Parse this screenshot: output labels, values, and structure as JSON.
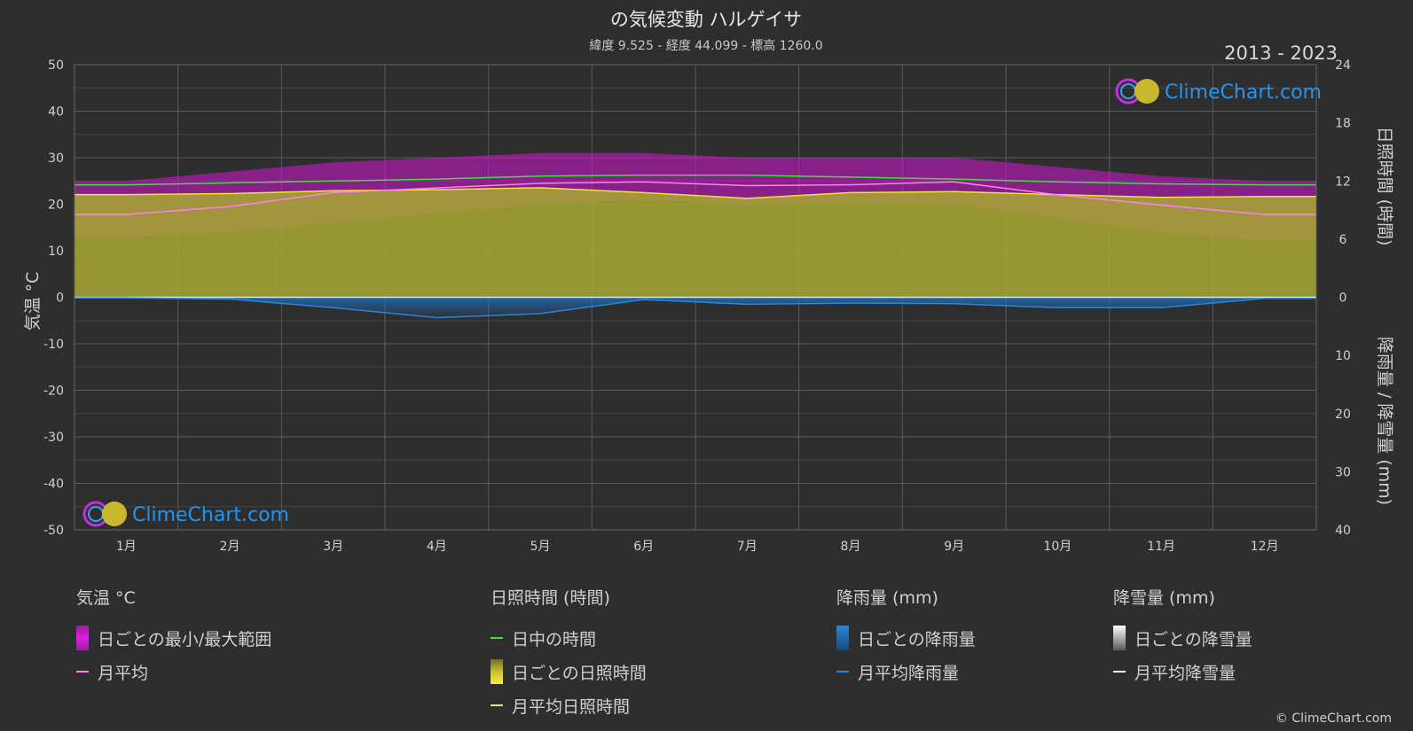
{
  "title": "の気候変動 ハルゲイサ",
  "subtitle": "緯度 9.525 - 経度 44.099 - 標高 1260.0",
  "period": "2013 - 2023",
  "brand": "ClimeChart.com",
  "copyright": "© ClimeChart.com",
  "colors": {
    "background": "#2e2e2e",
    "temp_range": "#d218d2",
    "temp_mean": "#ff7ff0",
    "daylight": "#44dd44",
    "sunshine_fill": "#a8a832",
    "sunshine_mean": "#f0e040",
    "rain": "#2a86d8",
    "snow": "#ffffff",
    "brand_text": "#2196f3"
  },
  "legend": {
    "temp": {
      "header": "気温 °C",
      "range": "日ごとの最小/最大範囲",
      "mean": "月平均"
    },
    "sun": {
      "header": "日照時間 (時間)",
      "daylight": "日中の時間",
      "daily": "日ごとの日照時間",
      "mean": "月平均日照時間"
    },
    "rain": {
      "header": "降雨量 (mm)",
      "daily": "日ごとの降雨量",
      "mean": "月平均降雨量"
    },
    "snow": {
      "header": "降雪量 (mm)",
      "daily": "日ごとの降雪量",
      "mean": "月平均降雪量"
    }
  },
  "chart_data": {
    "type": "area",
    "months": [
      "1月",
      "2月",
      "3月",
      "4月",
      "5月",
      "6月",
      "7月",
      "8月",
      "9月",
      "10月",
      "11月",
      "12月"
    ],
    "left_axis": {
      "label": "気温 °C",
      "min": -50,
      "max": 50,
      "ticks": [
        50,
        40,
        30,
        20,
        10,
        0,
        -10,
        -20,
        -30,
        -40,
        -50
      ]
    },
    "right_axis_sun": {
      "label": "日照時間 (時間)",
      "min": 0,
      "max": 24,
      "ticks": [
        24,
        18,
        12,
        6,
        0
      ]
    },
    "right_axis_rain": {
      "label": "降雨量 / 降雪量 (mm)",
      "min": 0,
      "max": 40,
      "ticks": [
        0,
        10,
        20,
        30,
        40
      ]
    },
    "series": [
      {
        "name": "日ごとの最小/最大範囲",
        "kind": "temp_range",
        "min": [
          13,
          14,
          16,
          18,
          20,
          21,
          20,
          20,
          20,
          17,
          14,
          12
        ],
        "max": [
          25,
          27,
          29,
          30,
          31,
          31,
          30,
          30,
          30,
          28,
          26,
          25
        ]
      },
      {
        "name": "月平均",
        "kind": "temp_mean",
        "values": [
          17.8,
          19.5,
          22.5,
          23.5,
          24.5,
          24.8,
          24.0,
          24.2,
          24.8,
          22.0,
          19.8,
          17.8
        ]
      },
      {
        "name": "日中の時間",
        "kind": "daylight",
        "values": [
          11.6,
          11.8,
          12.0,
          12.2,
          12.5,
          12.6,
          12.6,
          12.4,
          12.2,
          11.9,
          11.7,
          11.6
        ]
      },
      {
        "name": "日ごとの日照時間",
        "kind": "sunshine_daily",
        "values": [
          10.6,
          10.7,
          11.0,
          11.1,
          11.3,
          10.8,
          10.2,
          10.8,
          10.9,
          10.6,
          10.3,
          10.4
        ]
      },
      {
        "name": "月平均日照時間",
        "kind": "sunshine_mean",
        "values": [
          10.6,
          10.7,
          11.0,
          11.1,
          11.3,
          10.8,
          10.2,
          10.8,
          10.9,
          10.6,
          10.3,
          10.4
        ]
      },
      {
        "name": "月平均降雨量",
        "kind": "rain_mean",
        "values": [
          0.1,
          0.3,
          1.8,
          3.5,
          2.8,
          0.4,
          1.2,
          1.0,
          1.1,
          1.8,
          1.8,
          0.2
        ]
      },
      {
        "name": "月平均降雪量",
        "kind": "snow_mean",
        "values": [
          0,
          0,
          0,
          0,
          0,
          0,
          0,
          0,
          0,
          0,
          0,
          0
        ]
      }
    ]
  }
}
